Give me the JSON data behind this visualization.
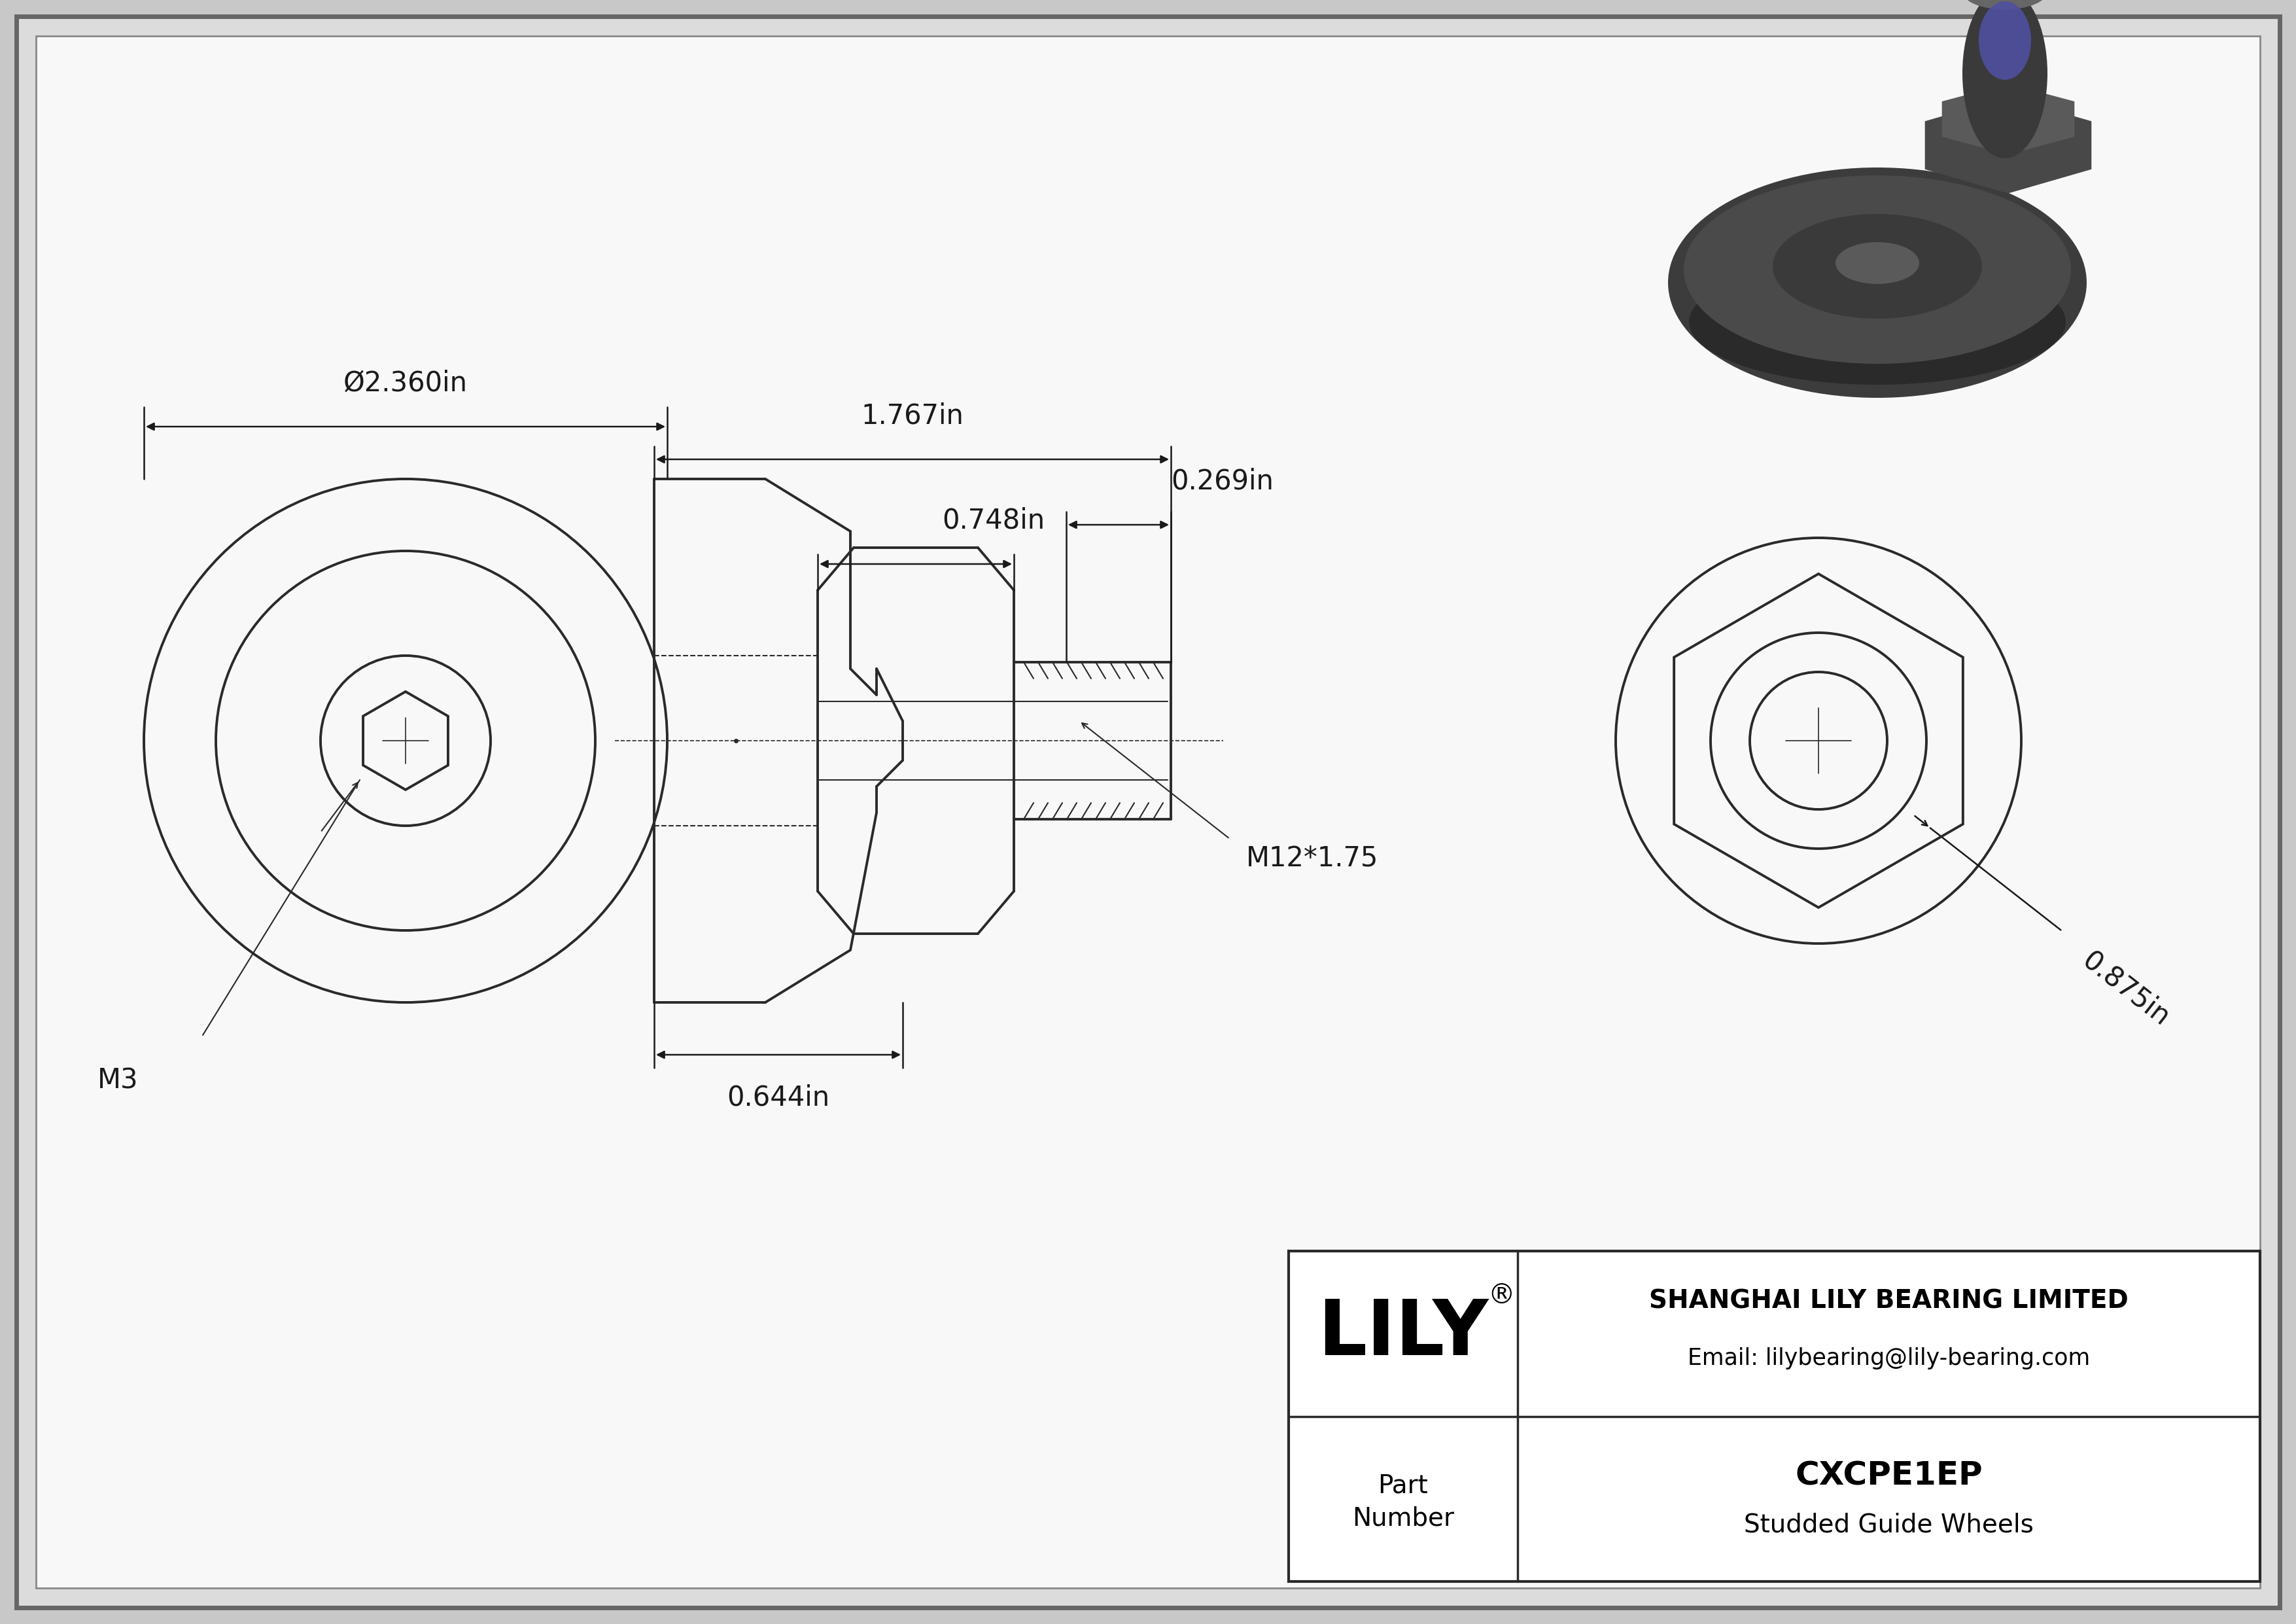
{
  "bg_outer": "#c8c8c8",
  "bg_inner": "#f0f0f0",
  "border_color_outer": "#666666",
  "border_color_inner": "#888888",
  "line_color": "#2a2a2a",
  "dim_color": "#1a1a1a",
  "part_number": "CXCPE1EP",
  "part_name": "Studded Guide Wheels",
  "company": "SHANGHAI LILY BEARING LIMITED",
  "email": "Email: lilybearing@lily-bearing.com",
  "logo_text": "LILY",
  "dim_diameter": "Ø2.360in",
  "dim_length": "1.767in",
  "dim_stud_dia": "0.269in",
  "dim_hex_width": "0.748in",
  "dim_wheel_width": "0.644in",
  "dim_thread": "M12*1.75",
  "dim_socket": "M3",
  "dim_nut_width": "0.875in"
}
